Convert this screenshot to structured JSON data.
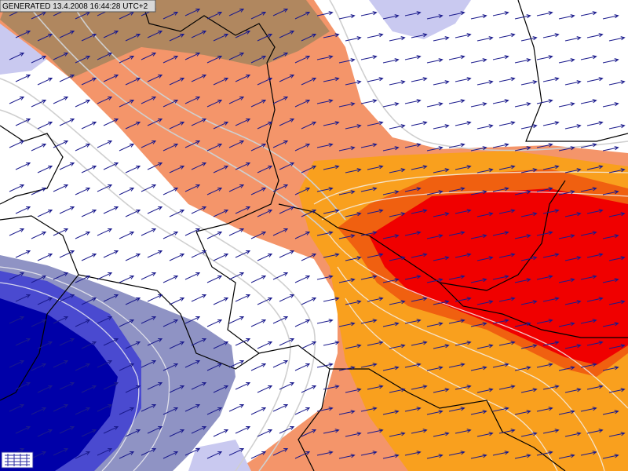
{
  "header": {
    "generated": "GENERATED 13.4.2008 16:44:28 UTC+2"
  }
}
